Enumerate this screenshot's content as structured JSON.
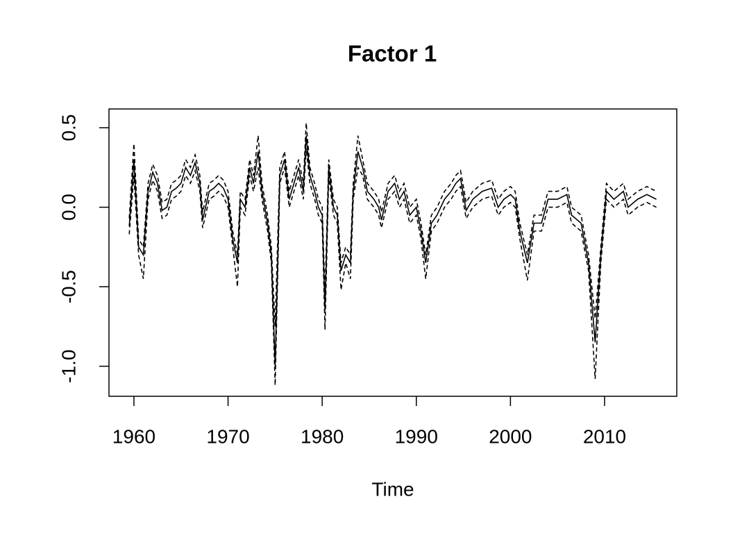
{
  "chart_data": {
    "type": "line",
    "title": "Factor 1",
    "xlabel": "Time",
    "x": [
      1959.5,
      1960,
      1960.5,
      1961,
      1961.5,
      1962,
      1962.5,
      1963,
      1963.5,
      1964,
      1964.5,
      1965,
      1965.5,
      1966,
      1966.5,
      1967,
      1967.3,
      1968,
      1968.5,
      1969,
      1969.5,
      1970,
      1970.5,
      1971,
      1971.3,
      1971.8,
      1972.3,
      1972.7,
      1973.2,
      1973.6,
      1974.2,
      1974.6,
      1975,
      1975.5,
      1976,
      1976.5,
      1977,
      1977.5,
      1978,
      1978.3,
      1978.7,
      1979.2,
      1979.6,
      1980,
      1980.3,
      1980.7,
      1981.2,
      1981.6,
      1982,
      1982.5,
      1983,
      1983.3,
      1983.8,
      1984.3,
      1984.8,
      1985.5,
      1986,
      1986.3,
      1987,
      1987.7,
      1988.2,
      1988.7,
      1989.3,
      1990,
      1990.5,
      1991,
      1991.6,
      1992.2,
      1993,
      1993.7,
      1994.2,
      1994.7,
      1995.3,
      1996,
      1997,
      1998,
      1998.7,
      1999.3,
      2000,
      2000.5,
      2001,
      2001.8,
      2002.5,
      2003.3,
      2004,
      2005,
      2006,
      2006.5,
      2007.5,
      2008.3,
      2009,
      2009.6,
      2010.2,
      2011,
      2012,
      2012.5,
      2013.5,
      2014.5,
      2015.5
    ],
    "series": [
      {
        "color": "#000000",
        "dash": "solid",
        "values": [
          -0.12,
          0.3,
          -0.25,
          -0.3,
          0.1,
          0.22,
          0.15,
          -0.02,
          0.0,
          0.1,
          0.12,
          0.15,
          0.25,
          0.2,
          0.28,
          0.15,
          -0.08,
          0.1,
          0.12,
          0.15,
          0.12,
          0.05,
          -0.2,
          -0.35,
          0.05,
          0.0,
          0.25,
          0.15,
          0.35,
          0.1,
          -0.1,
          -0.3,
          -1.0,
          0.2,
          0.3,
          0.05,
          0.15,
          0.25,
          0.1,
          0.45,
          0.2,
          0.1,
          0.0,
          -0.05,
          -0.65,
          0.25,
          0.0,
          -0.05,
          -0.4,
          -0.3,
          -0.35,
          0.1,
          0.35,
          0.25,
          0.1,
          0.05,
          0.0,
          -0.08,
          0.1,
          0.15,
          0.05,
          0.1,
          -0.05,
          0.0,
          -0.15,
          -0.35,
          -0.1,
          -0.05,
          0.05,
          0.1,
          0.15,
          0.18,
          -0.02,
          0.05,
          0.1,
          0.12,
          0.0,
          0.05,
          0.08,
          0.05,
          -0.15,
          -0.35,
          -0.1,
          -0.1,
          0.05,
          0.05,
          0.08,
          -0.05,
          -0.1,
          -0.35,
          -0.85,
          -0.3,
          0.1,
          0.05,
          0.1,
          0.0,
          0.05,
          0.08,
          0.05
        ]
      },
      {
        "color": "#000000",
        "dash": "dashed",
        "values": [
          -0.07,
          0.4,
          -0.2,
          -0.25,
          0.15,
          0.27,
          0.2,
          0.03,
          0.05,
          0.15,
          0.17,
          0.2,
          0.3,
          0.25,
          0.33,
          0.2,
          -0.03,
          0.15,
          0.17,
          0.2,
          0.17,
          0.1,
          -0.15,
          -0.3,
          0.1,
          0.05,
          0.3,
          0.2,
          0.45,
          0.15,
          -0.05,
          -0.25,
          -0.75,
          0.25,
          0.35,
          0.1,
          0.2,
          0.3,
          0.15,
          0.53,
          0.25,
          0.15,
          0.05,
          0.0,
          -0.55,
          0.3,
          0.05,
          0.0,
          -0.35,
          -0.25,
          -0.3,
          0.15,
          0.45,
          0.3,
          0.15,
          0.1,
          0.05,
          -0.03,
          0.15,
          0.2,
          0.1,
          0.15,
          0.0,
          0.05,
          -0.1,
          -0.3,
          -0.05,
          0.0,
          0.1,
          0.15,
          0.2,
          0.23,
          0.03,
          0.1,
          0.15,
          0.17,
          0.05,
          0.1,
          0.13,
          0.1,
          -0.1,
          -0.3,
          -0.05,
          -0.05,
          0.1,
          0.1,
          0.13,
          0.0,
          -0.05,
          -0.3,
          -0.7,
          -0.25,
          0.15,
          0.1,
          0.15,
          0.05,
          0.1,
          0.13,
          0.1
        ]
      },
      {
        "color": "#000000",
        "dash": "dashed",
        "values": [
          -0.17,
          0.2,
          -0.3,
          -0.45,
          0.05,
          0.17,
          0.1,
          -0.07,
          -0.05,
          0.05,
          0.07,
          0.1,
          0.2,
          0.15,
          0.23,
          0.1,
          -0.13,
          0.05,
          0.07,
          0.1,
          0.07,
          0.0,
          -0.25,
          -0.5,
          0.0,
          -0.05,
          0.2,
          0.1,
          0.25,
          0.05,
          -0.15,
          -0.35,
          -1.12,
          0.15,
          0.25,
          0.0,
          0.1,
          0.2,
          0.05,
          0.37,
          0.15,
          0.05,
          -0.05,
          -0.1,
          -0.77,
          0.2,
          -0.05,
          -0.1,
          -0.52,
          -0.35,
          -0.45,
          0.05,
          0.25,
          0.2,
          0.05,
          0.0,
          -0.05,
          -0.13,
          0.05,
          0.1,
          0.0,
          0.05,
          -0.1,
          -0.05,
          -0.2,
          -0.45,
          -0.15,
          -0.1,
          0.0,
          0.05,
          0.1,
          0.13,
          -0.07,
          0.0,
          0.05,
          0.07,
          -0.05,
          0.0,
          0.03,
          0.0,
          -0.2,
          -0.46,
          -0.15,
          -0.15,
          0.0,
          0.0,
          0.03,
          -0.1,
          -0.15,
          -0.4,
          -1.08,
          -0.35,
          0.05,
          0.0,
          0.05,
          -0.05,
          0.0,
          0.03,
          0.0
        ]
      }
    ],
    "xlim": [
      1957.35,
      2017.67
    ],
    "xticks": [
      1960,
      1970,
      1980,
      1990,
      2000,
      2010
    ],
    "ylim": [
      -1.189,
      0.618
    ],
    "yticks": [
      {
        "value": -1.0,
        "label": "-1.0"
      },
      -0.5,
      {
        "value": 0.0,
        "label": "0.0"
      },
      0.5
    ],
    "grid": false
  }
}
